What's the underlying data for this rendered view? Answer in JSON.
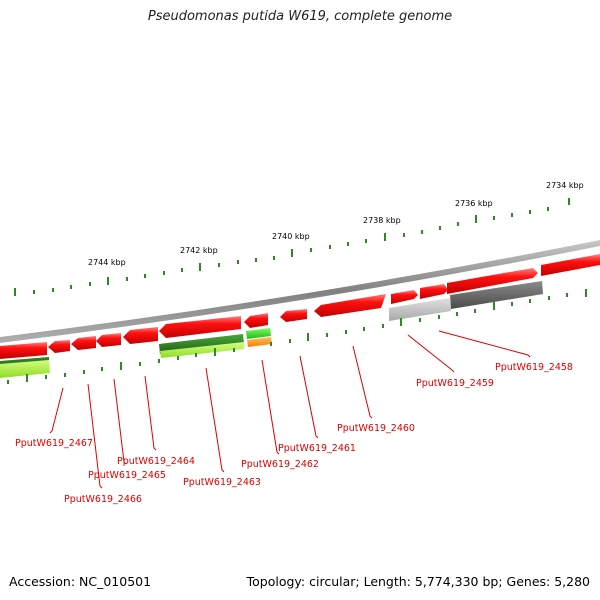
{
  "header": {
    "title": "Pseudomonas putida W619, complete genome"
  },
  "footer": {
    "accession": "Accession: NC_010501",
    "topology": "Topology: circular; Length: 5,774,330 bp; Genes: 5,280"
  },
  "scale_labels": [
    "2734 kbp",
    "2736 kbp",
    "2738 kbp",
    "2740 kbp",
    "2742 kbp",
    "2744 kbp"
  ],
  "genes": [
    "PputW619_2458",
    "PputW619_2459",
    "PputW619_2460",
    "PputW619_2461",
    "PputW619_2462",
    "PputW619_2463",
    "PputW619_2464",
    "PputW619_2465",
    "PputW619_2466",
    "PputW619_2467"
  ],
  "colors": {
    "gene": "#ff0000",
    "backbone": "#808080",
    "tick": "#2e8b22",
    "label": "#e00000",
    "green_dark": "#2e7d1e",
    "green_light": "#a8ff3e",
    "orange": "#ff8c00",
    "gray": "#666666"
  }
}
